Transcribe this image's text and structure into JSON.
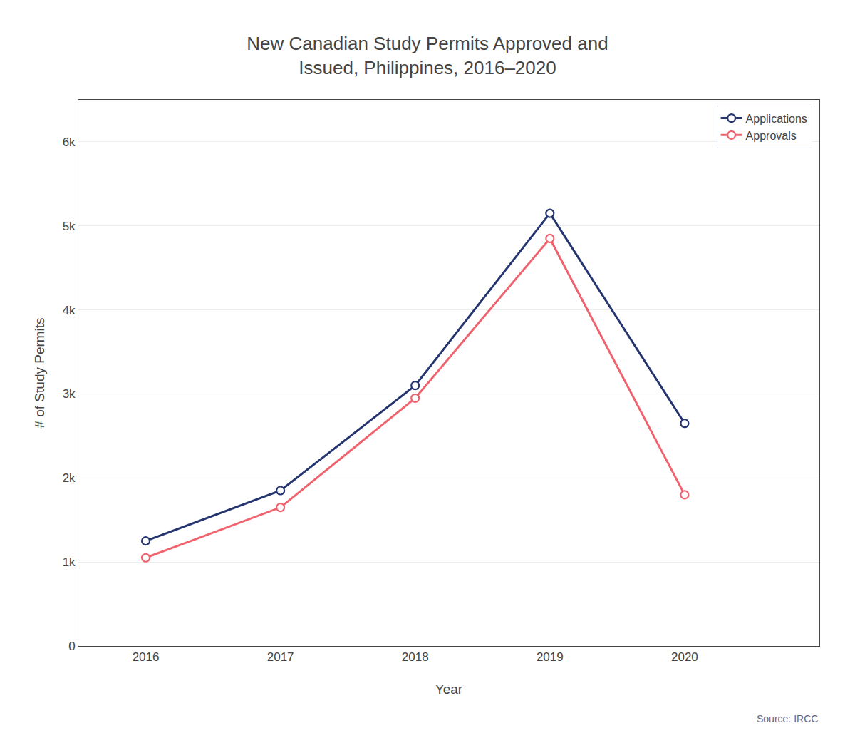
{
  "chart_data": {
    "type": "line",
    "title": "New Canadian Study Permits Approved and\nIssued, Philippines, 2016–2020",
    "x_label": "Year",
    "y_label": "# of Study Permits",
    "x": [
      2016,
      2017,
      2018,
      2019,
      2020
    ],
    "series": [
      {
        "name": "Applications",
        "color": "#253570",
        "values": [
          1250,
          1850,
          3100,
          5150,
          2650
        ]
      },
      {
        "name": "Approvals",
        "color": "#f0636e",
        "values": [
          1050,
          1650,
          2950,
          4850,
          1800
        ]
      }
    ],
    "xlim": [
      2015.5,
      2021.0
    ],
    "xticks": [
      2016,
      2017,
      2018,
      2019,
      2020
    ],
    "ylim": [
      0,
      6500
    ],
    "yticks": [
      0,
      {
        "value": 1000,
        "label": "1k"
      },
      {
        "value": 2000,
        "label": "2k"
      },
      {
        "value": 3000,
        "label": "3k"
      },
      {
        "value": 4000,
        "label": "4k"
      },
      {
        "value": 5000,
        "label": "5k"
      },
      {
        "value": 6000,
        "label": "6k"
      }
    ],
    "grid": "y",
    "legend": "upper right",
    "marker": "circle",
    "annotations": [
      "Source: IRCC"
    ]
  }
}
